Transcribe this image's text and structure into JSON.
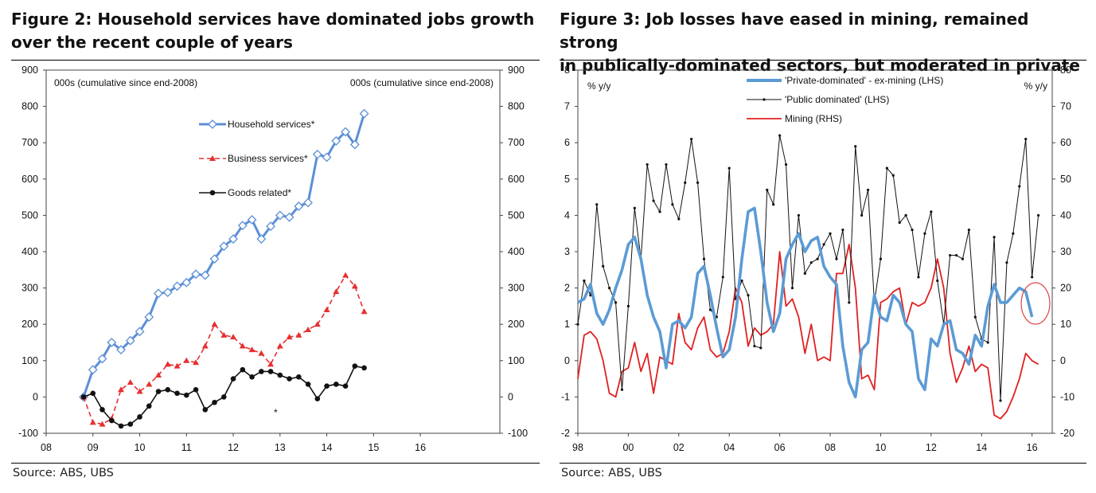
{
  "figures": [
    {
      "title_line1": "Figure 2: Household services have dominated jobs growth",
      "title_line2": "over the recent couple of years",
      "source": "Source:  ABS, UBS",
      "chart_data": {
        "type": "line",
        "title": "Figure 2: Household services have dominated jobs growth over the recent couple of years",
        "ylabel_left": "000s (cumulative since end-2008)",
        "ylabel_right": "000s (cumulative since end-2008)",
        "ylim": [
          -100,
          900
        ],
        "yticks": [
          -100,
          0,
          100,
          200,
          300,
          400,
          500,
          600,
          700,
          800,
          900
        ],
        "yticks_right": [
          -100,
          0,
          100,
          200,
          300,
          400,
          500,
          600,
          700,
          800,
          900
        ],
        "xlim": [
          8,
          17.7
        ],
        "xtick_labels": [
          "08",
          "09",
          "10",
          "11",
          "12",
          "13",
          "14",
          "15",
          "16"
        ],
        "x": [
          8.8,
          9.0,
          9.2,
          9.4,
          9.6,
          9.8,
          10.0,
          10.2,
          10.4,
          10.6,
          10.8,
          11.0,
          11.2,
          11.4,
          11.6,
          11.8,
          12.0,
          12.2,
          12.4,
          12.6,
          12.8,
          13.0,
          13.2,
          13.4,
          13.6,
          13.8,
          14.0,
          14.2,
          14.4,
          14.6,
          14.8,
          15.0,
          15.2,
          15.4,
          15.6,
          15.8,
          16.0,
          16.2
        ],
        "legend_position": "top-center",
        "annotation": "*",
        "series": [
          {
            "name": "Household services*",
            "color": "#5b8fd6",
            "marker": "diamond",
            "values": [
              0,
              75,
              105,
              150,
              130,
              155,
              180,
              220,
              285,
              288,
              305,
              315,
              338,
              335,
              380,
              415,
              435,
              472,
              488,
              435,
              470,
              500,
              495,
              525,
              535,
              668,
              660,
              705,
              730,
              695,
              780,
              null,
              null,
              null,
              null,
              null,
              null,
              null
            ]
          },
          {
            "name": "Business services*",
            "color": "#e63030",
            "marker": "triangle",
            "values": [
              0,
              -70,
              -75,
              -60,
              20,
              40,
              15,
              35,
              60,
              90,
              85,
              100,
              95,
              140,
              200,
              170,
              165,
              140,
              130,
              120,
              90,
              140,
              165,
              170,
              185,
              200,
              240,
              290,
              335,
              305,
              235,
              null,
              null,
              null,
              null,
              null,
              null,
              null
            ]
          },
          {
            "name": "Goods related*",
            "color": "#111111",
            "marker": "circle",
            "values": [
              0,
              10,
              -35,
              -65,
              -80,
              -75,
              -55,
              -25,
              15,
              20,
              10,
              5,
              20,
              -35,
              -15,
              0,
              50,
              75,
              55,
              70,
              70,
              60,
              50,
              55,
              35,
              -5,
              30,
              35,
              30,
              85,
              80,
              null,
              null,
              null,
              null,
              null,
              null,
              null
            ]
          }
        ]
      }
    },
    {
      "title_line1": "Figure 3: Job losses have eased in mining, remained strong",
      "title_line2": "in publically-dominated sectors, but moderated in private",
      "source": "Source:  ABS, UBS",
      "chart_data": {
        "type": "line",
        "title": "Figure 3: Job losses have eased in mining, remained strong in publically-dominated sectors, but moderated in private",
        "ylabel_left": "% y/y",
        "ylabel_right": "% y/y",
        "ylim": [
          -2,
          8
        ],
        "yticks": [
          -2,
          -1,
          0,
          1,
          2,
          3,
          4,
          5,
          6,
          7,
          8
        ],
        "ylim_right": [
          -20,
          80
        ],
        "yticks_right": [
          -20,
          -10,
          0,
          10,
          20,
          30,
          40,
          50,
          60,
          70,
          80
        ],
        "xlim": [
          1998,
          2016.8
        ],
        "xtick_labels": [
          "98",
          "00",
          "02",
          "04",
          "06",
          "08",
          "10",
          "12",
          "14",
          "16"
        ],
        "legend_position": "top-center",
        "annotation": "red circle highlighting latest private-dominated reading",
        "series": [
          {
            "name": "'Private-dominated' - ex-mining (LHS)",
            "color": "#5b9bd5",
            "axis": "left",
            "x": [
              1998.0,
              1998.25,
              1998.5,
              1998.75,
              1999.0,
              1999.25,
              1999.5,
              1999.75,
              2000.0,
              2000.25,
              2000.5,
              2000.75,
              2001.0,
              2001.25,
              2001.5,
              2001.75,
              2002.0,
              2002.25,
              2002.5,
              2002.75,
              2003.0,
              2003.25,
              2003.5,
              2003.75,
              2004.0,
              2004.25,
              2004.5,
              2004.75,
              2005.0,
              2005.25,
              2005.5,
              2005.75,
              2006.0,
              2006.25,
              2006.5,
              2006.75,
              2007.0,
              2007.25,
              2007.5,
              2007.75,
              2008.0,
              2008.25,
              2008.5,
              2008.75,
              2009.0,
              2009.25,
              2009.5,
              2009.75,
              2010.0,
              2010.25,
              2010.5,
              2010.75,
              2011.0,
              2011.25,
              2011.5,
              2011.75,
              2012.0,
              2012.25,
              2012.5,
              2012.75,
              2013.0,
              2013.25,
              2013.5,
              2013.75,
              2014.0,
              2014.25,
              2014.5,
              2014.75,
              2015.0,
              2015.25,
              2015.5,
              2015.75,
              2016.0,
              2016.25
            ],
            "values": [
              1.6,
              1.7,
              2.1,
              1.3,
              1.0,
              1.4,
              2.0,
              2.5,
              3.2,
              3.4,
              2.8,
              1.8,
              1.2,
              0.8,
              -0.2,
              1.0,
              1.1,
              0.9,
              1.2,
              2.4,
              2.6,
              1.8,
              0.9,
              0.1,
              0.3,
              1.2,
              2.8,
              4.1,
              4.2,
              3.0,
              1.6,
              0.8,
              1.3,
              2.8,
              3.2,
              3.5,
              3.0,
              3.3,
              3.4,
              2.6,
              2.3,
              2.1,
              0.4,
              -0.6,
              -1.0,
              0.3,
              0.5,
              1.8,
              1.2,
              1.1,
              1.8,
              1.6,
              1.0,
              0.8,
              -0.5,
              -0.8,
              0.6,
              0.4,
              1.0,
              1.1,
              0.3,
              0.2,
              -0.1,
              0.7,
              0.4,
              1.5,
              2.1,
              1.6,
              1.6,
              1.8,
              2.0,
              1.9,
              1.2,
              null
            ]
          },
          {
            "name": "'Public dominated' (LHS)",
            "color": "#111111",
            "axis": "left",
            "x": [
              1998.0,
              1998.25,
              1998.5,
              1998.75,
              1999.0,
              1999.25,
              1999.5,
              1999.75,
              2000.0,
              2000.25,
              2000.5,
              2000.75,
              2001.0,
              2001.25,
              2001.5,
              2001.75,
              2002.0,
              2002.25,
              2002.5,
              2002.75,
              2003.0,
              2003.25,
              2003.5,
              2003.75,
              2004.0,
              2004.25,
              2004.5,
              2004.75,
              2005.0,
              2005.25,
              2005.5,
              2005.75,
              2006.0,
              2006.25,
              2006.5,
              2006.75,
              2007.0,
              2007.25,
              2007.5,
              2007.75,
              2008.0,
              2008.25,
              2008.5,
              2008.75,
              2009.0,
              2009.25,
              2009.5,
              2009.75,
              2010.0,
              2010.25,
              2010.5,
              2010.75,
              2011.0,
              2011.25,
              2011.5,
              2011.75,
              2012.0,
              2012.25,
              2012.5,
              2012.75,
              2013.0,
              2013.25,
              2013.5,
              2013.75,
              2014.0,
              2014.25,
              2014.5,
              2014.75,
              2015.0,
              2015.25,
              2015.5,
              2015.75,
              2016.0,
              2016.25
            ],
            "values": [
              1.0,
              2.2,
              1.8,
              4.3,
              2.6,
              2.0,
              1.6,
              -0.8,
              1.5,
              4.2,
              2.8,
              5.4,
              4.4,
              4.1,
              5.4,
              4.3,
              3.9,
              4.9,
              6.1,
              4.9,
              2.8,
              1.4,
              1.2,
              2.3,
              5.3,
              1.7,
              2.2,
              1.8,
              0.4,
              0.35,
              4.7,
              4.3,
              6.2,
              5.4,
              2.0,
              4.0,
              2.4,
              2.7,
              2.8,
              3.2,
              3.5,
              2.8,
              3.6,
              1.6,
              5.9,
              4.0,
              4.7,
              1.6,
              2.8,
              5.3,
              5.1,
              3.8,
              4.0,
              3.6,
              2.3,
              3.5,
              4.1,
              2.2,
              1.0,
              2.9,
              2.9,
              2.8,
              3.6,
              1.2,
              0.6,
              0.5,
              3.4,
              -1.1,
              2.7,
              3.5,
              4.8,
              6.1,
              2.3,
              4.0
            ]
          },
          {
            "name": "Mining (RHS)",
            "color": "#e02020",
            "axis": "right",
            "x": [
              1998.0,
              1998.25,
              1998.5,
              1998.75,
              1999.0,
              1999.25,
              1999.5,
              1999.75,
              2000.0,
              2000.25,
              2000.5,
              2000.75,
              2001.0,
              2001.25,
              2001.5,
              2001.75,
              2002.0,
              2002.25,
              2002.5,
              2002.75,
              2003.0,
              2003.25,
              2003.5,
              2003.75,
              2004.0,
              2004.25,
              2004.5,
              2004.75,
              2005.0,
              2005.25,
              2005.5,
              2005.75,
              2006.0,
              2006.25,
              2006.5,
              2006.75,
              2007.0,
              2007.25,
              2007.5,
              2007.75,
              2008.0,
              2008.25,
              2008.5,
              2008.75,
              2009.0,
              2009.25,
              2009.5,
              2009.75,
              2010.0,
              2010.25,
              2010.5,
              2010.75,
              2011.0,
              2011.25,
              2011.5,
              2011.75,
              2012.0,
              2012.25,
              2012.5,
              2012.75,
              2013.0,
              2013.25,
              2013.5,
              2013.75,
              2014.0,
              2014.25,
              2014.5,
              2014.75,
              2015.0,
              2015.25,
              2015.5,
              2015.75,
              2016.0,
              2016.25
            ],
            "values": [
              -5,
              7,
              8,
              6,
              0,
              -9,
              -10,
              -3,
              -2,
              5,
              -3,
              2,
              -9,
              1,
              0,
              -1,
              13,
              5,
              3,
              9,
              12,
              3,
              1,
              2,
              8,
              20,
              16,
              4,
              9,
              7,
              8,
              10,
              30,
              15,
              17,
              12,
              2,
              10,
              0,
              1,
              0,
              24,
              24,
              32,
              20,
              -5,
              -4,
              -8,
              16,
              17,
              19,
              20,
              10,
              16,
              15,
              16,
              20,
              28,
              20,
              2,
              -6,
              -2,
              4,
              -3,
              -1,
              -2,
              -15,
              -16,
              -14,
              -10,
              -5,
              2,
              0,
              -1
            ]
          }
        ]
      }
    }
  ]
}
